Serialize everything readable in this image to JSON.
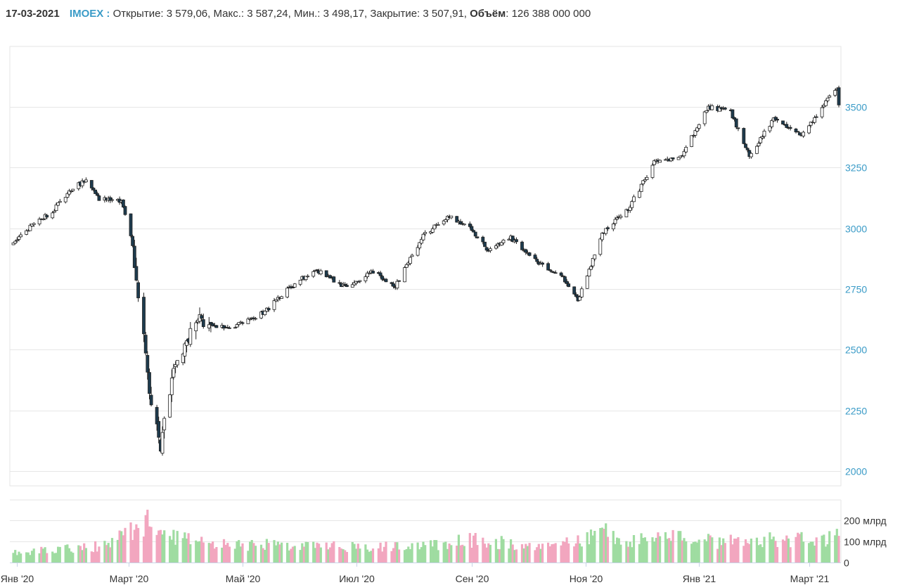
{
  "header": {
    "date": "17-03-2021",
    "ticker": "IMOEX :",
    "open_label": "Открытие:",
    "open_value": "3 579,06,",
    "high_label": "Макс.:",
    "high_value": "3 587,24,",
    "low_label": "Мин.:",
    "low_value": "3 498,17,",
    "close_label": "Закрытие:",
    "close_value": "3 507,91,",
    "volume_label": "Объём",
    "volume_value": ": 126 388 000 000"
  },
  "colors": {
    "accent": "#3a9bc7",
    "candle_down": "#1d3b4e",
    "candle_up": "#ffffff",
    "volume_up": "#9fdca1",
    "volume_down": "#f2a6bf",
    "grid": "#e6e6e6"
  },
  "chart_data": [
    {
      "type": "candlestick",
      "x_ticks": [
        "Янв '20",
        "Март '20",
        "Май '20",
        "Июл '20",
        "Сен '20",
        "Ноя '20",
        "Янв '21",
        "Март '21"
      ],
      "y_ticks": [
        "2000",
        "2250",
        "2500",
        "2750",
        "3000",
        "3250",
        "3500"
      ],
      "ylim": [
        2000,
        3500
      ],
      "grid": true,
      "close_anchors": [
        [
          "2019-12-30",
          2935
        ],
        [
          "2020-01-10",
          3020
        ],
        [
          "2020-01-20",
          3070
        ],
        [
          "2020-01-30",
          3160
        ],
        [
          "2020-02-07",
          3200
        ],
        [
          "2020-02-14",
          3120
        ],
        [
          "2020-02-26",
          3110
        ],
        [
          "2020-03-03",
          2930
        ],
        [
          "2020-03-05",
          2800
        ],
        [
          "2020-03-10",
          2500
        ],
        [
          "2020-03-12",
          2340
        ],
        [
          "2020-03-18",
          2100
        ],
        [
          "2020-03-24",
          2380
        ],
        [
          "2020-04-06",
          2620
        ],
        [
          "2020-04-15",
          2600
        ],
        [
          "2020-04-24",
          2590
        ],
        [
          "2020-05-12",
          2650
        ],
        [
          "2020-05-27",
          2760
        ],
        [
          "2020-06-09",
          2830
        ],
        [
          "2020-06-25",
          2760
        ],
        [
          "2020-07-10",
          2820
        ],
        [
          "2020-07-22",
          2760
        ],
        [
          "2020-08-06",
          2970
        ],
        [
          "2020-08-19",
          3050
        ],
        [
          "2020-08-31",
          3000
        ],
        [
          "2020-09-10",
          2910
        ],
        [
          "2020-09-22",
          2960
        ],
        [
          "2020-10-06",
          2860
        ],
        [
          "2020-10-20",
          2800
        ],
        [
          "2020-10-28",
          2700
        ],
        [
          "2020-11-10",
          2980
        ],
        [
          "2020-11-24",
          3080
        ],
        [
          "2020-12-08",
          3270
        ],
        [
          "2020-12-22",
          3290
        ],
        [
          "2021-01-06",
          3500
        ],
        [
          "2021-01-18",
          3480
        ],
        [
          "2021-01-28",
          3300
        ],
        [
          "2021-02-10",
          3450
        ],
        [
          "2021-02-25",
          3380
        ],
        [
          "2021-03-10",
          3520
        ],
        [
          "2021-03-16",
          3580
        ],
        [
          "2021-03-17",
          3507.91
        ]
      ],
      "last_candle": {
        "date": "2021-03-17",
        "open": 3579.06,
        "high": 3587.24,
        "low": 3498.17,
        "close": 3507.91
      }
    },
    {
      "type": "bar",
      "series_name": "Объём",
      "y_ticks": [
        "0",
        "100 млрд",
        "200 млрд"
      ],
      "ylim": [
        0,
        200
      ],
      "volume_anchors_bln": [
        [
          "2019-12-30",
          45
        ],
        [
          "2020-02-14",
          85
        ],
        [
          "2020-02-28",
          140
        ],
        [
          "2020-03-10",
          200
        ],
        [
          "2020-03-16",
          170
        ],
        [
          "2020-03-27",
          120
        ],
        [
          "2020-04-20",
          95
        ],
        [
          "2020-06-01",
          80
        ],
        [
          "2020-08-03",
          75
        ],
        [
          "2020-09-01",
          110
        ],
        [
          "2020-10-15",
          75
        ],
        [
          "2020-11-09",
          160
        ],
        [
          "2020-11-30",
          110
        ],
        [
          "2020-12-21",
          120
        ],
        [
          "2021-01-11",
          105
        ],
        [
          "2021-02-01",
          120
        ],
        [
          "2021-03-01",
          115
        ],
        [
          "2021-03-17",
          126.388
        ]
      ]
    }
  ]
}
